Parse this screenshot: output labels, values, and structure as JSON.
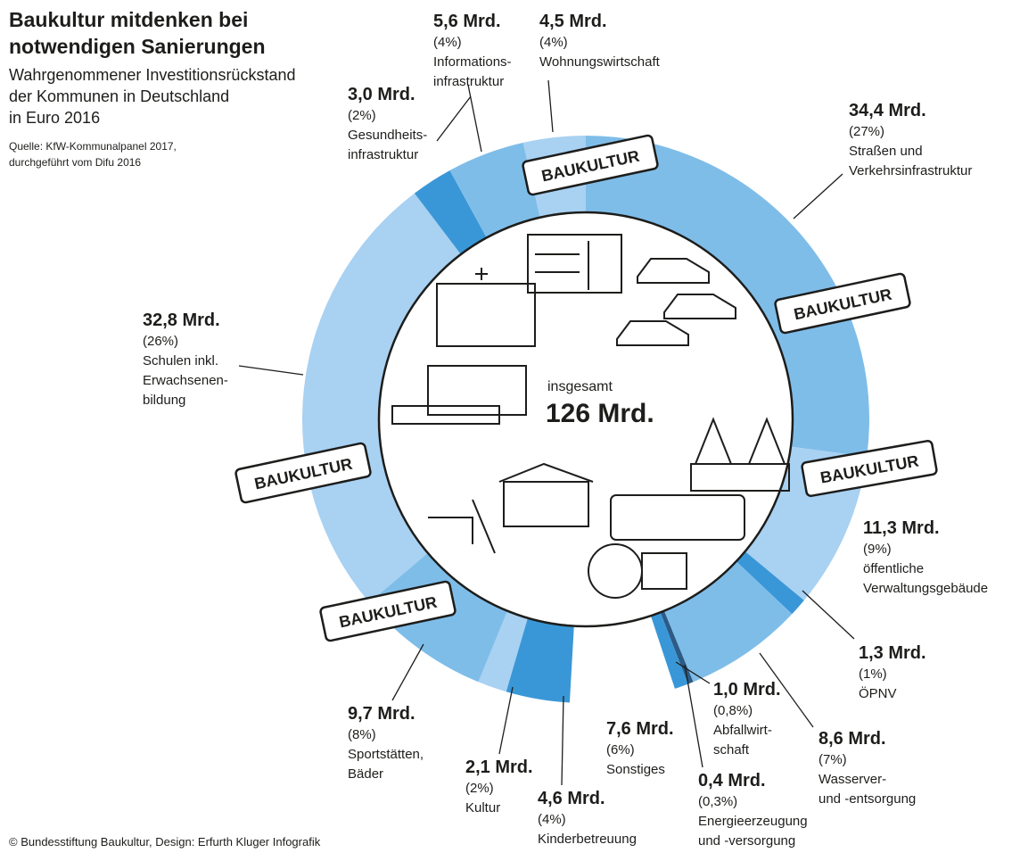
{
  "chart_data": {
    "type": "pie",
    "donut": true,
    "title": [
      "Baukultur mitdenken bei",
      "notwendigen Sanierungen"
    ],
    "subtitle": [
      "Wahrgenommener Investitionsrückstand",
      "der Kommunen in Deutschland",
      "in Euro 2016"
    ],
    "source": [
      "Quelle: KfW-Kommunalpanel 2017,",
      "durchgeführt vom Difu 2016"
    ],
    "credit": "© Bundesstiftung Baukultur, Design: Erfurth Kluger Infografik",
    "center_label": "insgesamt",
    "center_value": "126 Mrd.",
    "annotations": [
      "BAUKULTUR",
      "BAUKULTUR",
      "BAUKULTUR",
      "BAUKULTUR",
      "BAUKULTUR"
    ],
    "categories": [
      [
        "Straßen und",
        "Verkehrsinfrastruktur"
      ],
      [
        "öffentliche",
        "Verwaltungsgebäude"
      ],
      [
        "ÖPNV"
      ],
      [
        "Wasserver-",
        "und -entsorgung"
      ],
      [
        "Energieerzeugung",
        "und -versorgung"
      ],
      [
        "Abfallwirt-",
        "schaft"
      ],
      [
        "Sonstiges"
      ],
      [
        "Kinderbetreuung"
      ],
      [
        "Kultur"
      ],
      [
        "Sportstätten,",
        "Bäder"
      ],
      [
        "Schulen inkl.",
        "Erwachsenen-",
        "bildung"
      ],
      [
        "Gesundheits-",
        "infrastruktur"
      ],
      [
        "Informations-",
        "infrastruktur"
      ],
      [
        "Wohnungswirtschaft"
      ]
    ],
    "values": [
      34.4,
      11.3,
      1.3,
      8.6,
      0.4,
      1.0,
      7.6,
      4.6,
      2.1,
      9.7,
      32.8,
      3.0,
      5.6,
      4.5
    ],
    "value_labels": [
      "34,4 Mrd.",
      "11,3 Mrd.",
      "1,3 Mrd.",
      "8,6 Mrd.",
      "0,4 Mrd.",
      "1,0 Mrd.",
      "7,6 Mrd.",
      "4,6 Mrd.",
      "2,1 Mrd.",
      "9,7 Mrd.",
      "32,8 Mrd.",
      "3,0 Mrd.",
      "5,6 Mrd.",
      "4,5 Mrd."
    ],
    "share_labels": [
      "(27%)",
      "(9%)",
      "(1%)",
      "(7%)",
      "(0,3%)",
      "(0,8%)",
      "(6%)",
      "(4%)",
      "(2%)",
      "(8%)",
      "(26%)",
      "(2%)",
      "(4%)",
      "(4%)"
    ],
    "colors": [
      "#7fbde9",
      "#a8d1f2",
      "#3a97d7",
      "#7fbde9",
      "#2c5b86",
      "#3a97d7",
      "#ffffff",
      "#3a97d7",
      "#a8d1f2",
      "#7fbde9",
      "#a8d1f2",
      "#3a97d7",
      "#7fbde9",
      "#a8d1f2"
    ]
  }
}
